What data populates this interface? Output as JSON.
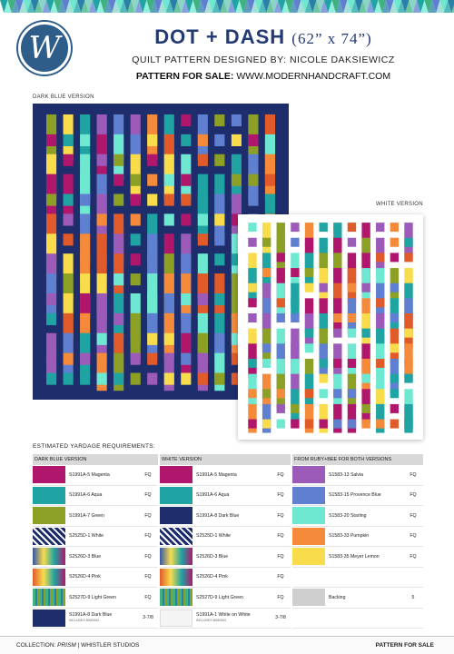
{
  "header": {
    "logo_letter": "W",
    "title": "DOT + DASH",
    "dimensions": "(62” x 74”)",
    "designer": "QUILT PATTERN DESIGNED BY: NICOLE DAKSIEWICZ",
    "sale_label": "PATTERN FOR SALE:",
    "sale_url": "WWW.MODERNHANDCRAFT.COM"
  },
  "captions": {
    "dark": "DARK BLUE VERSION",
    "white": "WHITE VERSION"
  },
  "yardage": {
    "title": "ESTIMATED YARDAGE REQUIREMENTS:",
    "tables": [
      {
        "heading": "DARK BLUE VERSION",
        "rows": [
          {
            "name": "S1991A-5 Magenta",
            "amount": "FQ",
            "color": "#b0166c",
            "pattern": "solid"
          },
          {
            "name": "S1991A-6 Aqua",
            "amount": "FQ",
            "color": "#1fa3a3",
            "pattern": "solid"
          },
          {
            "name": "S1991A-7 Green",
            "amount": "FQ",
            "color": "#8da026",
            "pattern": "solid"
          },
          {
            "name": "S2525D-1 White",
            "amount": "FQ",
            "color": "#1b2b6b",
            "pattern": "check"
          },
          {
            "name": "S2526D-3 Blue",
            "amount": "FQ",
            "color": "#3456a8",
            "pattern": "rainbow"
          },
          {
            "name": "S2526D-4 Pink",
            "amount": "FQ",
            "color": "#e05a2a",
            "pattern": "rainbow"
          },
          {
            "name": "S2527D-9 Light Green",
            "amount": "FQ",
            "color": "#3fb27f",
            "pattern": "weave"
          },
          {
            "name": "S1991A-8 Dark Blue",
            "note": "INCLUDES BINDING",
            "amount": "3-7/8",
            "color": "#1e2d6b",
            "pattern": "solid"
          }
        ]
      },
      {
        "heading": "WHITE VERSION",
        "rows": [
          {
            "name": "S1991A-5 Magenta",
            "amount": "FQ",
            "color": "#b0166c",
            "pattern": "solid"
          },
          {
            "name": "S1991A-6 Aqua",
            "amount": "FQ",
            "color": "#1fa3a3",
            "pattern": "solid"
          },
          {
            "name": "S1991A-8 Dark Blue",
            "amount": "FQ",
            "color": "#1e2d6b",
            "pattern": "solid"
          },
          {
            "name": "S2525D-1 White",
            "amount": "FQ",
            "color": "#1b2b6b",
            "pattern": "check"
          },
          {
            "name": "S2526D-3 Blue",
            "amount": "FQ",
            "color": "#3456a8",
            "pattern": "rainbow"
          },
          {
            "name": "S2526D-4 Pink",
            "amount": "FQ",
            "color": "#e05a2a",
            "pattern": "rainbow"
          },
          {
            "name": "S2527D-9 Light Green",
            "amount": "FQ",
            "color": "#3fb27f",
            "pattern": "weave"
          },
          {
            "name": "S1991A-1 White on White",
            "note": "INCLUDES BINDING",
            "amount": "3-7/8",
            "color": "#f4f4f4",
            "pattern": "solid"
          }
        ]
      },
      {
        "heading": "FROM RUBY+BEE FOR BOTH VERSIONS",
        "rows": [
          {
            "name": "S1583-13 Salvia",
            "amount": "FQ",
            "color": "#9c5bb8",
            "pattern": "solid"
          },
          {
            "name": "S1583-15 Provence Blue",
            "amount": "FQ",
            "color": "#5f7fd0",
            "pattern": "solid"
          },
          {
            "name": "S1583-20 Starling",
            "amount": "FQ",
            "color": "#6fe8d2",
            "pattern": "solid"
          },
          {
            "name": "S1583-33 Pumpkin",
            "amount": "FQ",
            "color": "#f48a3a",
            "pattern": "solid"
          },
          {
            "name": "S1583-35 Meyer Lemon",
            "amount": "FQ",
            "color": "#f8dc4c",
            "pattern": "solid"
          },
          {
            "name": "",
            "amount": "",
            "color": "",
            "pattern": "none"
          },
          {
            "name": "Backing",
            "amount": "5",
            "color": "#cfcfcf",
            "pattern": "solid"
          },
          {
            "name": "",
            "amount": "",
            "color": "",
            "pattern": "none"
          }
        ]
      }
    ]
  },
  "footer": {
    "collection_label": "COLLECTION:",
    "collection_name": "PRISM",
    "separator": "|",
    "company": "WHISTLER STUDIOS",
    "right": "PATTERN FOR SALE"
  },
  "colors": {
    "navy": "#1e2d6b",
    "title_blue": "#243a73",
    "quilt_palette": [
      "#b0166c",
      "#1fa3a3",
      "#8da026",
      "#9c5bb8",
      "#5f7fd0",
      "#6fe8d2",
      "#f48a3a",
      "#f8dc4c",
      "#e05a2a"
    ]
  }
}
